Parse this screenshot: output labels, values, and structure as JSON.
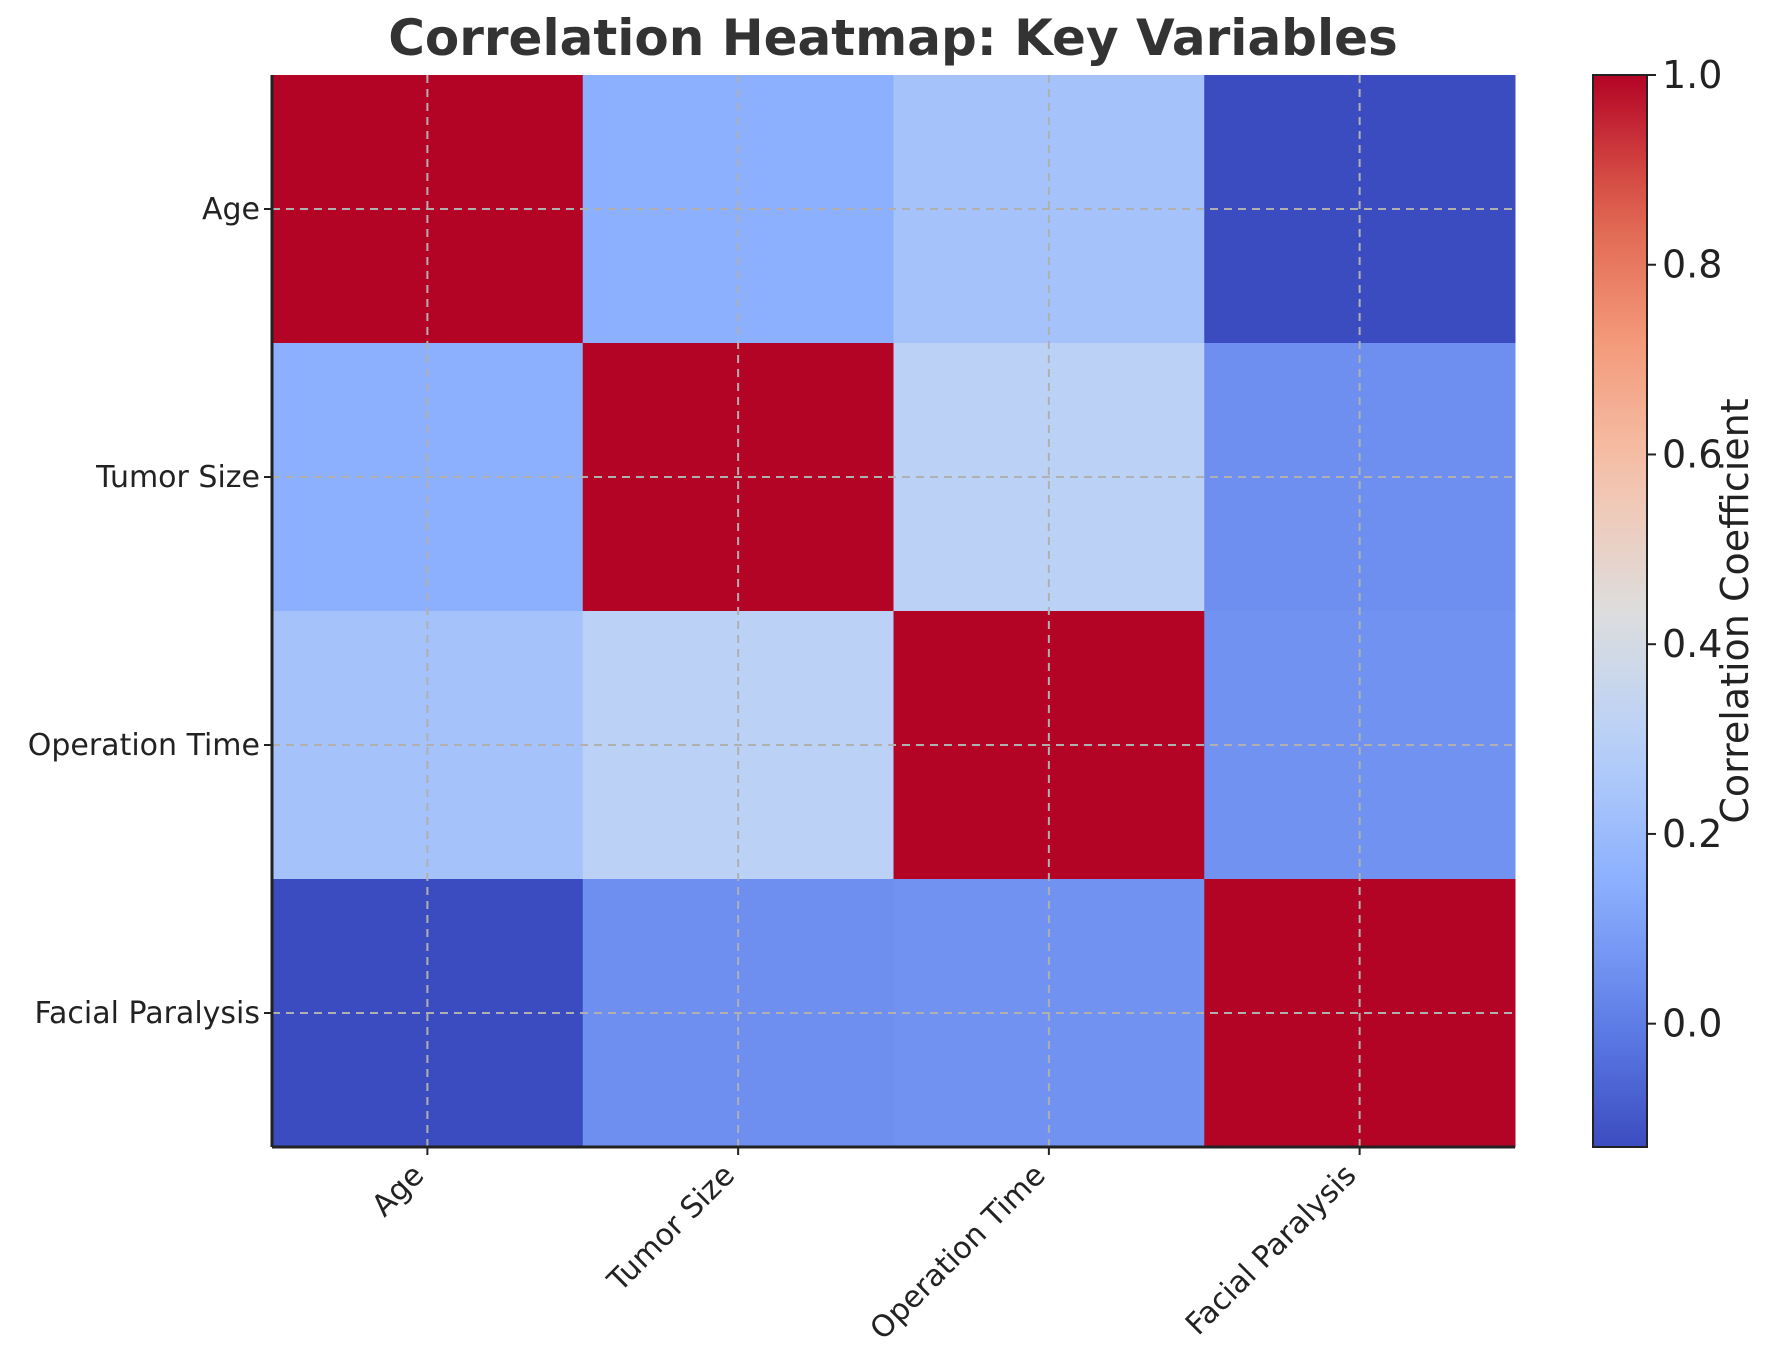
{
  "chart_data": {
    "type": "heatmap",
    "title": "Correlation Heatmap: Key Variables",
    "row_labels": [
      "Age",
      "Tumor Size",
      "Operation Time",
      "Facial Paralysis"
    ],
    "col_labels": [
      "Age",
      "Tumor Size",
      "Operation Time",
      "Facial Paralysis"
    ],
    "matrix": [
      [
        1.0,
        0.15,
        0.23,
        -0.13
      ],
      [
        0.15,
        1.0,
        0.31,
        0.05
      ],
      [
        0.23,
        0.31,
        1.0,
        0.06
      ],
      [
        -0.13,
        0.05,
        0.06,
        1.0
      ]
    ],
    "colormap": "coolwarm",
    "value_range": [
      -0.13,
      1.0
    ],
    "grid": true,
    "colorbar": {
      "label": "Correlation Coefficient",
      "ticks": [
        0.0,
        0.2,
        0.4,
        0.6,
        0.8,
        1.0
      ],
      "tick_labels": [
        "0.0",
        "0.2",
        "0.4",
        "0.6",
        "0.8",
        "1.0"
      ]
    }
  }
}
